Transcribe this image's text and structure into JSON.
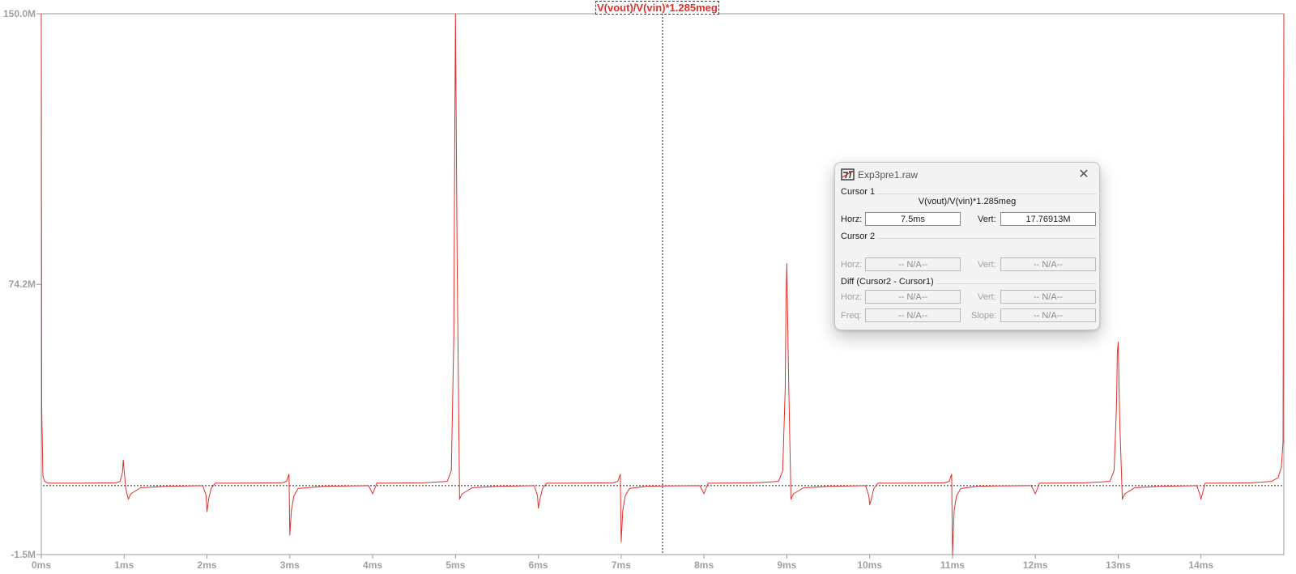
{
  "plot": {
    "title": "V(vout)/V(vin)*1.285meg",
    "trace_color": "#e0302a",
    "y_ticks": [
      "150.0M",
      "74.2M",
      "-1.5M"
    ],
    "x_ticks": [
      "0ms",
      "1ms",
      "2ms",
      "3ms",
      "4ms",
      "5ms",
      "6ms",
      "7ms",
      "8ms",
      "9ms",
      "10ms",
      "11ms",
      "12ms",
      "13ms",
      "14ms"
    ]
  },
  "chart_data": {
    "type": "line",
    "title": "V(vout)/V(vin)*1.285meg",
    "xlabel": "",
    "ylabel": "",
    "xlim": [
      0,
      15
    ],
    "ylim": [
      -1.5,
      150.0
    ],
    "x_unit": "ms",
    "y_unit": "M",
    "baseline": 17.8,
    "cursor1_x": 7.5,
    "series": [
      {
        "color": "#e0302a",
        "x": [
          0,
          0.005,
          0.02,
          0.04,
          0.08,
          0.2,
          0.5,
          0.9,
          0.95,
          0.98,
          0.99,
          1.0,
          1.02,
          1.05,
          1.08,
          1.2,
          1.5,
          1.95,
          1.99,
          2.0,
          2.02,
          2.05,
          2.1,
          2.4,
          2.9,
          2.96,
          2.99,
          3.0,
          3.02,
          3.05,
          3.1,
          3.4,
          3.95,
          3.99,
          4.0,
          4.05,
          4.2,
          4.6,
          4.9,
          4.95,
          4.98,
          4.99,
          5.0,
          5.02,
          5.05,
          5.08,
          5.2,
          5.5,
          5.95,
          5.99,
          6.0,
          6.02,
          6.05,
          6.1,
          6.4,
          6.9,
          6.96,
          6.99,
          7.0,
          7.02,
          7.05,
          7.1,
          7.3,
          7.5,
          7.95,
          7.99,
          8.0,
          8.05,
          8.2,
          8.6,
          8.9,
          8.95,
          8.98,
          8.99,
          9.0,
          9.02,
          9.05,
          9.08,
          9.2,
          9.5,
          9.95,
          9.99,
          10.0,
          10.02,
          10.05,
          10.1,
          10.4,
          10.9,
          10.96,
          10.99,
          11.0,
          11.02,
          11.05,
          11.1,
          11.3,
          11.5,
          11.95,
          11.99,
          12.0,
          12.05,
          12.2,
          12.6,
          12.9,
          12.95,
          12.98,
          12.99,
          13.0,
          13.02,
          13.05,
          13.08,
          13.2,
          13.5,
          13.95,
          13.99,
          14.0,
          14.05,
          14.2,
          14.6,
          14.85,
          14.93,
          14.97,
          14.99,
          15.0
        ],
        "y": [
          150.0,
          40.0,
          20.5,
          19.0,
          18.5,
          18.5,
          18.5,
          18.6,
          19.0,
          21.5,
          25.0,
          22.0,
          17.0,
          14.0,
          15.5,
          17.2,
          17.6,
          17.8,
          15.0,
          10.5,
          14.0,
          17.0,
          18.5,
          18.5,
          18.6,
          19.0,
          21.0,
          4.0,
          11.0,
          15.0,
          17.0,
          17.6,
          17.8,
          16.0,
          15.5,
          18.5,
          18.5,
          18.6,
          19.0,
          22.0,
          60.0,
          110.0,
          150.0,
          80.0,
          14.0,
          15.5,
          17.2,
          17.6,
          17.8,
          15.0,
          11.5,
          14.0,
          17.0,
          18.5,
          18.5,
          18.6,
          19.0,
          21.0,
          2.0,
          11.0,
          15.0,
          17.0,
          17.6,
          17.7,
          17.8,
          16.0,
          15.5,
          18.5,
          18.5,
          18.6,
          19.0,
          22.0,
          45.0,
          70.0,
          80.0,
          50.0,
          14.0,
          15.5,
          17.2,
          17.6,
          17.8,
          15.0,
          12.5,
          14.0,
          17.0,
          18.5,
          18.5,
          18.6,
          19.0,
          21.0,
          -1.5,
          11.0,
          15.0,
          17.0,
          17.6,
          17.7,
          17.8,
          16.0,
          15.5,
          18.5,
          18.5,
          18.6,
          19.0,
          22.0,
          40.0,
          55.0,
          58.0,
          35.0,
          14.0,
          15.5,
          17.2,
          17.6,
          17.8,
          15.0,
          14.0,
          18.5,
          18.5,
          18.6,
          19.0,
          20.0,
          23.0,
          30.0,
          150.0
        ]
      }
    ]
  },
  "dialog": {
    "title": "Exp3pre1.raw",
    "close_glyph": "✕",
    "cursor1_label": "Cursor 1",
    "cursor1_trace": "V(vout)/V(vin)*1.285meg",
    "cursor1_horz_label": "Horz:",
    "cursor1_horz_value": "7.5ms",
    "cursor1_vert_label": "Vert:",
    "cursor1_vert_value": "17.76913M",
    "cursor2_label": "Cursor 2",
    "cursor2_horz_label": "Horz:",
    "cursor2_horz_value": "-- N/A--",
    "cursor2_vert_label": "Vert:",
    "cursor2_vert_value": "-- N/A--",
    "diff_label": "Diff (Cursor2 - Cursor1)",
    "diff_horz_label": "Horz:",
    "diff_horz_value": "-- N/A--",
    "diff_vert_label": "Vert:",
    "diff_vert_value": "-- N/A--",
    "diff_freq_label": "Freq:",
    "diff_freq_value": "-- N/A--",
    "diff_slope_label": "Slope:",
    "diff_slope_value": "-- N/A--"
  }
}
